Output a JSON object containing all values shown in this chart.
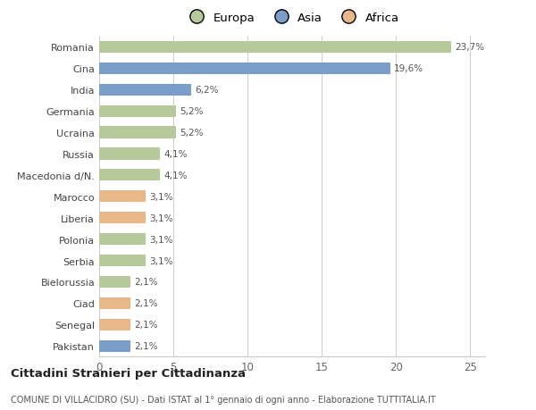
{
  "categories": [
    "Romania",
    "Cina",
    "India",
    "Germania",
    "Ucraina",
    "Russia",
    "Macedonia d/N.",
    "Marocco",
    "Liberia",
    "Polonia",
    "Serbia",
    "Bielorussia",
    "Ciad",
    "Senegal",
    "Pakistan"
  ],
  "values": [
    23.7,
    19.6,
    6.2,
    5.2,
    5.2,
    4.1,
    4.1,
    3.1,
    3.1,
    3.1,
    3.1,
    2.1,
    2.1,
    2.1,
    2.1
  ],
  "labels": [
    "23,7%",
    "19,6%",
    "6,2%",
    "5,2%",
    "5,2%",
    "4,1%",
    "4,1%",
    "3,1%",
    "3,1%",
    "3,1%",
    "3,1%",
    "2,1%",
    "2,1%",
    "2,1%",
    "2,1%"
  ],
  "continents": [
    "Europa",
    "Asia",
    "Asia",
    "Europa",
    "Europa",
    "Europa",
    "Europa",
    "Africa",
    "Africa",
    "Europa",
    "Europa",
    "Europa",
    "Africa",
    "Africa",
    "Asia"
  ],
  "colors": {
    "Europa": "#b5c99a",
    "Asia": "#7b9ec9",
    "Africa": "#e8b88a"
  },
  "xlim": [
    0,
    26
  ],
  "xticks": [
    0,
    5,
    10,
    15,
    20,
    25
  ],
  "title": "Cittadini Stranieri per Cittadinanza",
  "subtitle": "COMUNE DI VILLACIDRO (SU) - Dati ISTAT al 1° gennaio di ogni anno - Elaborazione TUTTITALIA.IT",
  "background_color": "#ffffff",
  "grid_color": "#cccccc"
}
